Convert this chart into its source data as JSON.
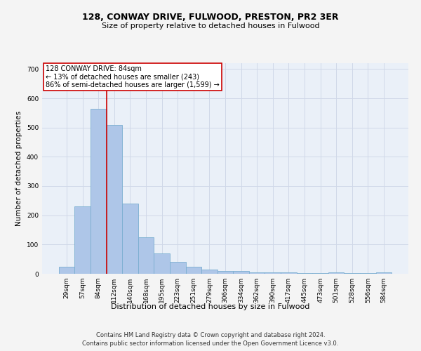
{
  "title1": "128, CONWAY DRIVE, FULWOOD, PRESTON, PR2 3ER",
  "title2": "Size of property relative to detached houses in Fulwood",
  "xlabel": "Distribution of detached houses by size in Fulwood",
  "ylabel": "Number of detached properties",
  "categories": [
    "29sqm",
    "57sqm",
    "84sqm",
    "112sqm",
    "140sqm",
    "168sqm",
    "195sqm",
    "223sqm",
    "251sqm",
    "279sqm",
    "306sqm",
    "334sqm",
    "362sqm",
    "390sqm",
    "417sqm",
    "445sqm",
    "473sqm",
    "501sqm",
    "528sqm",
    "556sqm",
    "584sqm"
  ],
  "values": [
    25,
    230,
    565,
    510,
    240,
    125,
    70,
    40,
    25,
    14,
    10,
    10,
    5,
    5,
    5,
    2,
    2,
    5,
    2,
    2,
    5
  ],
  "bar_color": "#aec6e8",
  "bar_edge_color": "#7aaed0",
  "grid_color": "#d0d8e8",
  "background_color": "#eaf0f8",
  "fig_background_color": "#f4f4f4",
  "property_bar_index": 2,
  "redline_label": "128 CONWAY DRIVE: 84sqm",
  "annotation_line1": "← 13% of detached houses are smaller (243)",
  "annotation_line2": "86% of semi-detached houses are larger (1,599) →",
  "annotation_box_color": "#ffffff",
  "annotation_box_edge": "#cc0000",
  "redline_color": "#cc0000",
  "ylim": [
    0,
    720
  ],
  "yticks": [
    0,
    100,
    200,
    300,
    400,
    500,
    600,
    700
  ],
  "footnote1": "Contains HM Land Registry data © Crown copyright and database right 2024.",
  "footnote2": "Contains public sector information licensed under the Open Government Licence v3.0.",
  "title1_fontsize": 9,
  "title2_fontsize": 8,
  "xlabel_fontsize": 8,
  "ylabel_fontsize": 7.5,
  "tick_fontsize": 6.5,
  "annotation_fontsize": 7,
  "footnote_fontsize": 6
}
